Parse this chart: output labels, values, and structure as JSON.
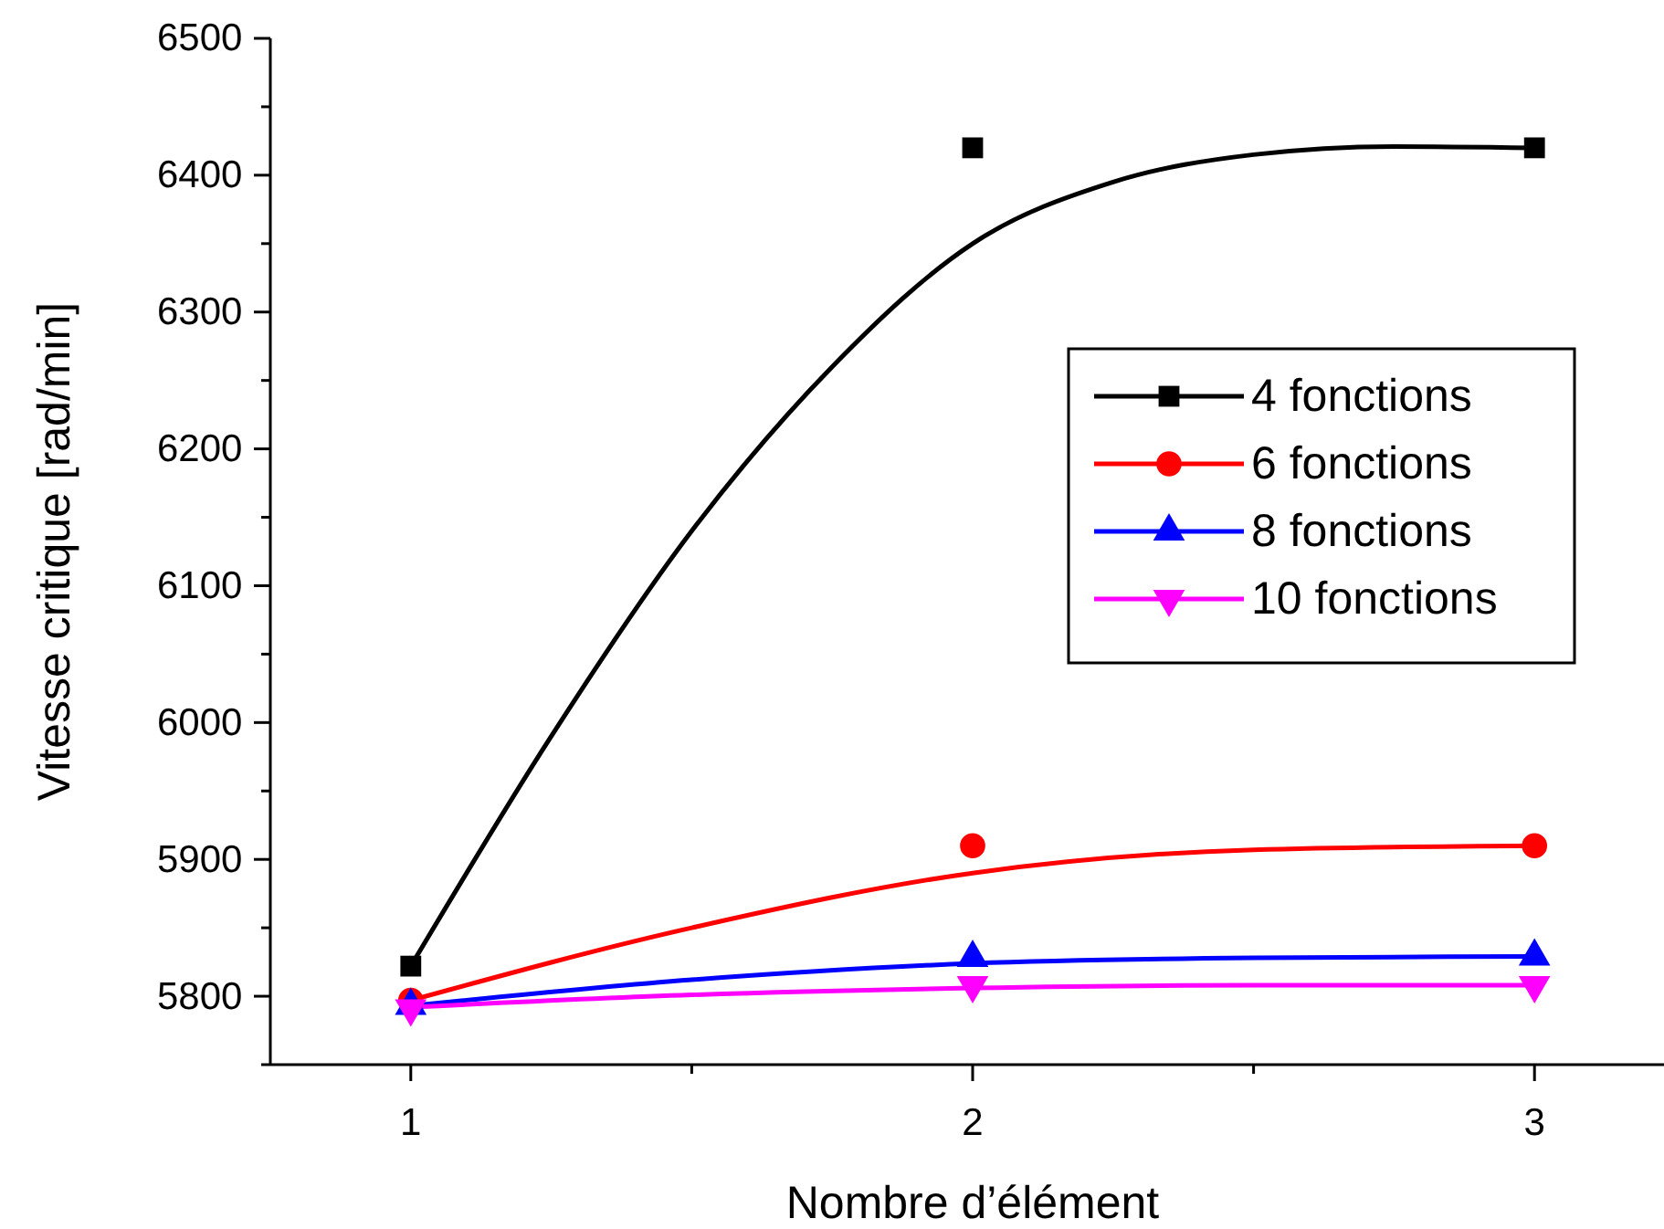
{
  "chart_data": {
    "type": "scatter",
    "xlabel": "Nombre d’élément",
    "ylabel": "Vitesse critique [rad/min]",
    "xlim": [
      0.75,
      3.25
    ],
    "xticks": [
      1,
      {
        "value": 1.5,
        "label": null
      },
      2,
      {
        "value": 2.5,
        "label": null
      },
      3
    ],
    "ylim": [
      5750,
      6500
    ],
    "yticks": [
      {
        "value": 5750,
        "label": null
      },
      5800,
      {
        "value": 5850,
        "label": null
      },
      5900,
      {
        "value": 5950,
        "label": null
      },
      6000,
      {
        "value": 6050,
        "label": null
      },
      6100,
      {
        "value": 6150,
        "label": null
      },
      6200,
      {
        "value": 6250,
        "label": null
      },
      6300,
      {
        "value": 6350,
        "label": null
      },
      6400,
      {
        "value": 6450,
        "label": null
      },
      6500
    ],
    "legend": "right",
    "grid": false,
    "series": [
      {
        "type": "line",
        "color": "#000000",
        "marker": "none",
        "x": [
          1,
          1.25,
          1.5,
          1.75,
          2,
          2.25,
          2.5,
          2.75,
          3
        ],
        "values": [
          5822,
          5990,
          6140,
          6260,
          6350,
          6395,
          6415,
          6421,
          6420
        ]
      },
      {
        "type": "line",
        "color": "#ff0000",
        "marker": "none",
        "x": [
          1,
          1.5,
          2,
          2.5,
          3
        ],
        "values": [
          5797,
          5850,
          5890,
          5907,
          5910
        ]
      },
      {
        "type": "line",
        "color": "#0000ff",
        "marker": "none",
        "x": [
          1,
          1.5,
          2,
          2.5,
          3
        ],
        "values": [
          5793,
          5812,
          5824,
          5828,
          5829
        ]
      },
      {
        "type": "line",
        "color": "#ff00ff",
        "marker": "none",
        "x": [
          1,
          1.5,
          2,
          2.5,
          3
        ],
        "values": [
          5792,
          5801,
          5806,
          5808,
          5808
        ]
      },
      {
        "name": "4 fonctions",
        "type": "scatter",
        "color": "#000000",
        "marker": "square",
        "x": [
          1,
          2,
          3
        ],
        "values": [
          5822,
          6420,
          6420
        ]
      },
      {
        "name": "6 fonctions",
        "type": "scatter",
        "color": "#ff0000",
        "marker": "circle",
        "x": [
          1,
          2,
          3
        ],
        "values": [
          5797,
          5910,
          5910
        ]
      },
      {
        "name": "8 fonctions",
        "type": "scatter",
        "color": "#0000ff",
        "marker": "triangle",
        "x": [
          1,
          2,
          3
        ],
        "values": [
          5793,
          5828,
          5829
        ]
      },
      {
        "name": "10 fonctions",
        "type": "scatter",
        "color": "#ff00ff",
        "marker": "triangle-down",
        "x": [
          1,
          2,
          3
        ],
        "values": [
          5791,
          5808,
          5808
        ]
      }
    ]
  }
}
